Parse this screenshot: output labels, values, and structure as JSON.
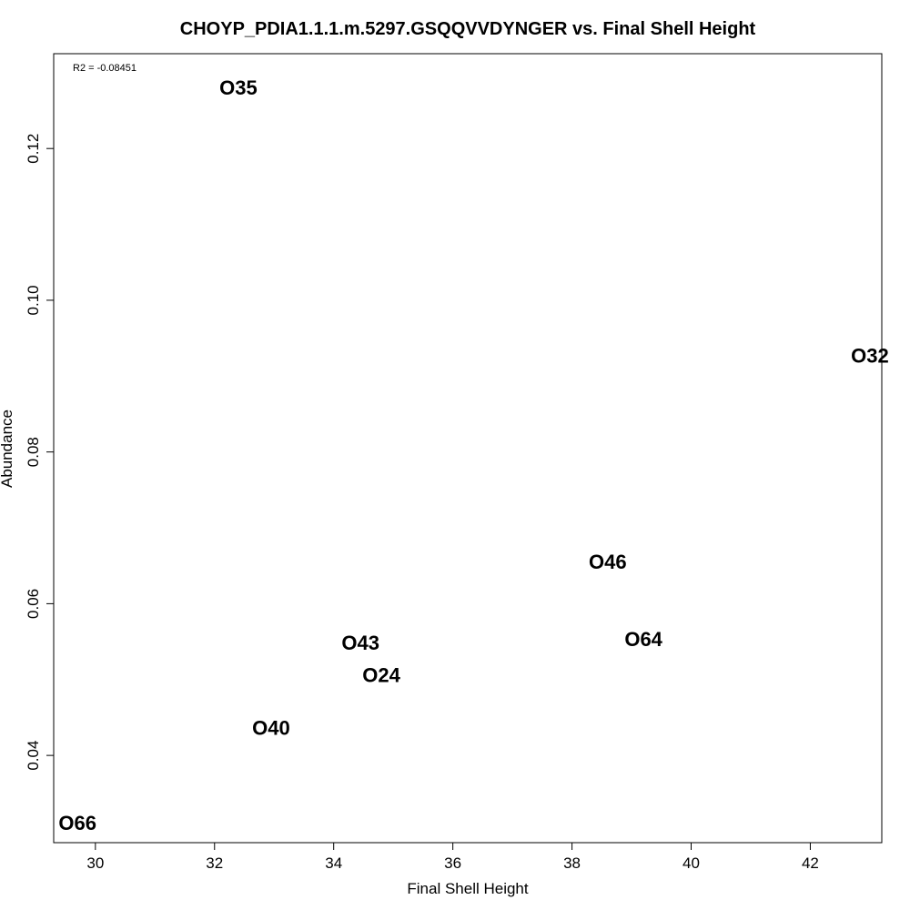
{
  "chart_data": {
    "type": "scatter",
    "title": "CHOYP_PDIA1.1.1.m.5297.GSQQVVDYNGER vs. Final Shell Height",
    "xlabel": "Final Shell Height",
    "ylabel": "Abundance",
    "annotation": "R2 = -0.08451",
    "xlim": [
      29.3,
      43.2
    ],
    "ylim": [
      0.0285,
      0.1325
    ],
    "xticks": [
      30,
      32,
      34,
      36,
      38,
      40,
      42
    ],
    "yticks": [
      0.04,
      0.06,
      0.08,
      0.1,
      0.12
    ],
    "xtick_labels": [
      "30",
      "32",
      "34",
      "36",
      "38",
      "40",
      "42"
    ],
    "ytick_labels": [
      "0.04",
      "0.06",
      "0.08",
      "0.10",
      "0.12"
    ],
    "points": [
      {
        "label": "O35",
        "x": 32.4,
        "y": 0.128
      },
      {
        "label": "O32",
        "x": 43.0,
        "y": 0.0927
      },
      {
        "label": "O46",
        "x": 38.6,
        "y": 0.0655
      },
      {
        "label": "O64",
        "x": 39.2,
        "y": 0.0553
      },
      {
        "label": "O43",
        "x": 34.45,
        "y": 0.0548
      },
      {
        "label": "O24",
        "x": 34.8,
        "y": 0.0506
      },
      {
        "label": "O40",
        "x": 32.95,
        "y": 0.0436
      },
      {
        "label": "O66",
        "x": 29.7,
        "y": 0.0311
      }
    ],
    "grid": false,
    "legend": "none"
  }
}
